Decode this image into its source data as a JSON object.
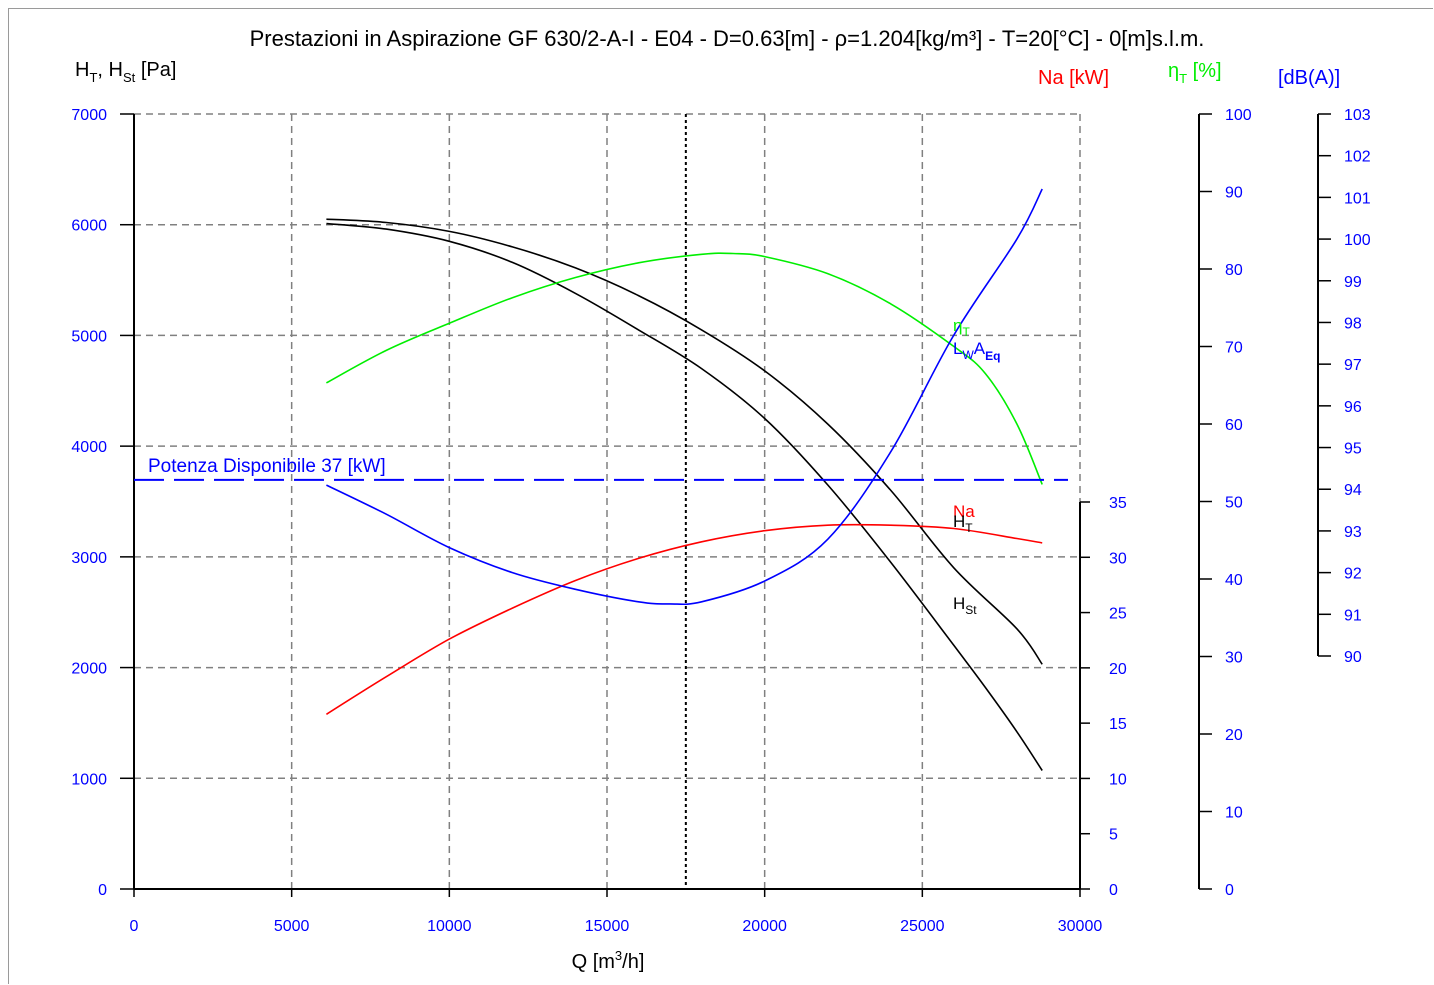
{
  "colors": {
    "left_axis": "#0000ff",
    "power": "#ff0000",
    "efficiency": "#00ee00",
    "noise": "#0000ff",
    "pressure": "#000000",
    "grid": "#808080"
  },
  "chart_data": {
    "type": "line",
    "title": "Prestazioni in Aspirazione GF 630/2-A-I - E04 - D=0.63[m] - ρ=1.204[kg/m³] - T=20[°C] - 0[m]s.l.m.",
    "xlabel": "Q [m³/h]",
    "xlim": [
      0,
      30000
    ],
    "x_ticks": [
      "0",
      "5000",
      "10000",
      "15000",
      "20000",
      "25000",
      "30000"
    ],
    "grid": true,
    "axes": {
      "pressure": {
        "label": "HT, HSt [Pa]",
        "range": [
          0,
          7000
        ],
        "ticks": [
          "0",
          "1000",
          "2000",
          "3000",
          "4000",
          "5000",
          "6000",
          "7000"
        ]
      },
      "power": {
        "label": "Na [kW]",
        "range": [
          0,
          35
        ],
        "ticks": [
          "0",
          "5",
          "10",
          "15",
          "20",
          "25",
          "30",
          "35"
        ]
      },
      "efficiency": {
        "label": "ηT [%]",
        "range": [
          0,
          100
        ],
        "ticks": [
          "0",
          "10",
          "20",
          "30",
          "40",
          "50",
          "60",
          "70",
          "80",
          "90",
          "100"
        ]
      },
      "noise": {
        "label": "[dB(A)]",
        "range": [
          90,
          103
        ],
        "ticks": [
          "90",
          "91",
          "92",
          "93",
          "94",
          "95",
          "96",
          "97",
          "98",
          "99",
          "100",
          "101",
          "102",
          "103"
        ]
      }
    },
    "operating_point_x": 17500,
    "available_power": {
      "label": "Potenza Disponibile 37 [kW]",
      "value_kw": 37
    },
    "series": [
      {
        "name": "HT",
        "axis": "pressure",
        "x": [
          6100,
          8000,
          10000,
          12000,
          14000,
          16000,
          18000,
          20000,
          22000,
          24000,
          26000,
          28000,
          28800
        ],
        "y": [
          6050,
          6020,
          5940,
          5800,
          5610,
          5360,
          5050,
          4680,
          4200,
          3600,
          2900,
          2350,
          2030
        ]
      },
      {
        "name": "HSt",
        "axis": "pressure",
        "x": [
          6100,
          8000,
          10000,
          12000,
          14000,
          16000,
          18000,
          20000,
          22000,
          24000,
          26000,
          27000,
          28000,
          28800
        ],
        "y": [
          6010,
          5960,
          5850,
          5660,
          5380,
          5050,
          4700,
          4250,
          3650,
          2950,
          2200,
          1820,
          1420,
          1070
        ]
      },
      {
        "name": "Na",
        "axis": "power",
        "x": [
          6100,
          8000,
          10000,
          12000,
          14000,
          16000,
          18000,
          20000,
          22000,
          24000,
          26000,
          28000,
          28800
        ],
        "y": [
          15.8,
          19.2,
          22.6,
          25.4,
          27.9,
          29.9,
          31.4,
          32.4,
          32.9,
          32.9,
          32.6,
          31.7,
          31.3
        ]
      },
      {
        "name": "ηT",
        "axis": "efficiency",
        "x": [
          6100,
          8000,
          10000,
          12000,
          14000,
          16000,
          18000,
          19000,
          20000,
          22000,
          24000,
          26000,
          27000,
          28000,
          28800
        ],
        "y": [
          65.3,
          69.5,
          73,
          76.3,
          78.9,
          80.8,
          81.9,
          82,
          81.6,
          79.4,
          75.5,
          70,
          66.5,
          60,
          52.2
        ]
      },
      {
        "name": "LWAEq",
        "axis": "noise",
        "x": [
          6100,
          8000,
          10000,
          12000,
          14000,
          16000,
          17000,
          18000,
          20000,
          22000,
          24000,
          26000,
          28000,
          28800
        ],
        "y": [
          94.1,
          93.4,
          92.6,
          92,
          91.6,
          91.3,
          91.25,
          91.3,
          91.8,
          92.8,
          94.9,
          97.7,
          100,
          101.2
        ]
      }
    ],
    "curve_labels": {
      "eta": "η",
      "eta_sub": "T",
      "lw": "L",
      "lw_sub": "W",
      "aeq": "A",
      "aeq_sub": "Eq",
      "na": "Na",
      "ht": "H",
      "ht_sub": "T",
      "hst": "H",
      "hst_sub": "St"
    },
    "axis_labels": {
      "pressure_h1": "H",
      "pressure_sub1": "T",
      "pressure_mid": ", H",
      "pressure_sub2": "St",
      "pressure_unit": " [Pa]",
      "power": "Na [kW]",
      "efficiency_eta": "η",
      "efficiency_sub": "T",
      "efficiency_unit": " [%]",
      "noise": "[dB(A)]",
      "x_main": "Q [m",
      "x_sup": "3",
      "x_end": "/h]"
    }
  }
}
